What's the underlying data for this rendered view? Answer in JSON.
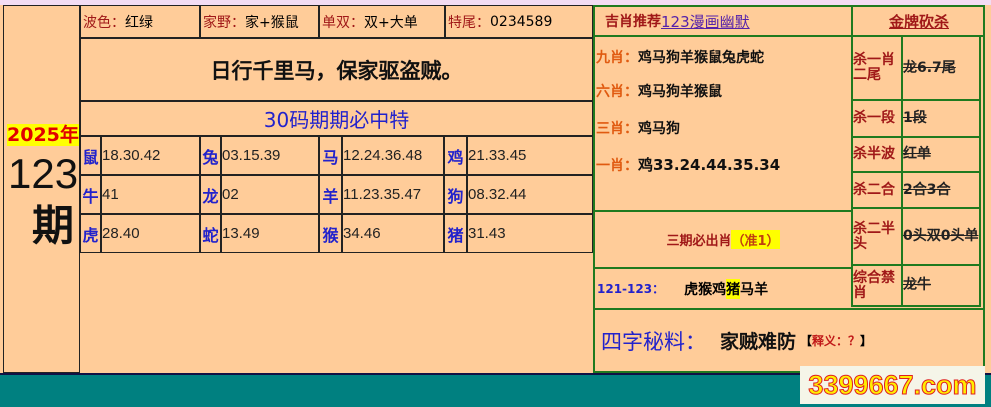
{
  "left": {
    "year": "2025年",
    "issue": "123",
    "issue_suffix": "期",
    "header": [
      {
        "label": "波色：",
        "value": "红绿"
      },
      {
        "label": "家野：",
        "value": "家+猴鼠"
      },
      {
        "label": "单双：",
        "value": "双+大单"
      },
      {
        "label": "特尾：",
        "value": "0234589"
      }
    ],
    "slogan": "日行千里马，保家驱盗贼。",
    "subtitle": "30码期期必中特",
    "zodiac_rows": [
      [
        {
          "z": "鼠",
          "n": "18.30.42"
        },
        {
          "z": "兔",
          "n": "03.15.39"
        },
        {
          "z": "马",
          "n": "12.24.36.48"
        },
        {
          "z": "鸡",
          "n": "21.33.45"
        }
      ],
      [
        {
          "z": "牛",
          "n": "41"
        },
        {
          "z": "龙",
          "n": "02"
        },
        {
          "z": "羊",
          "n": "11.23.35.47"
        },
        {
          "z": "狗",
          "n": "08.32.44"
        }
      ],
      [
        {
          "z": "虎",
          "n": "28.40"
        },
        {
          "z": "蛇",
          "n": "13.49"
        },
        {
          "z": "猴",
          "n": "34.46"
        },
        {
          "z": "猪",
          "n": "31.43"
        }
      ]
    ]
  },
  "right": {
    "title_prefix": "吉肖推荐",
    "title_link": "123漫画幽默",
    "kill_title": "金牌砍杀",
    "picks": [
      {
        "label": "九肖：",
        "value": "鸡马狗羊猴鼠兔虎蛇"
      },
      {
        "label": "六肖：",
        "value": "鸡马狗羊猴鼠"
      },
      {
        "label": "三肖：",
        "value": "鸡马狗"
      },
      {
        "label": "一肖：",
        "value": "鸡33.24.44.35.34"
      }
    ],
    "three_period": "三期必出肖",
    "three_period_tag": "（准1）",
    "history_label": "121-123：",
    "history_pre": "虎猴鸡",
    "history_hl": "猪",
    "history_post": "马羊",
    "kills": [
      {
        "label": "杀一肖二尾",
        "value": "龙6.7尾"
      },
      {
        "label": "杀一段",
        "value": "1段"
      },
      {
        "label": "杀半波",
        "value": "红单"
      },
      {
        "label": "杀二合",
        "value": "2合3合"
      },
      {
        "label": "杀二半头",
        "value": "0头双0头单"
      },
      {
        "label": "综合禁肖",
        "value": "龙牛"
      }
    ],
    "secret_label": "四字秘料：",
    "secret_value": "家贼难防",
    "secret_note_open": "【",
    "secret_note": "释义：？",
    "secret_note_close": "】"
  },
  "footer": {
    "watermark": "3399667.com"
  }
}
